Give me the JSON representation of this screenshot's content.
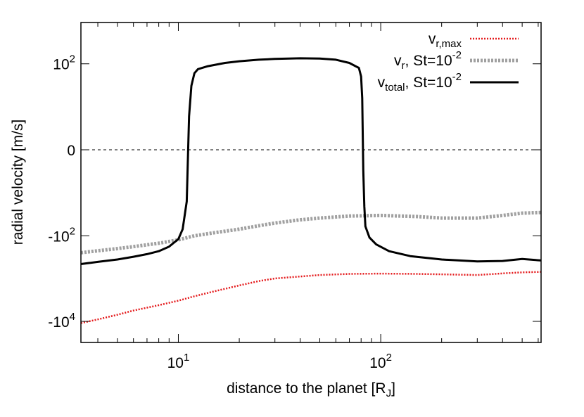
{
  "chart_data": {
    "type": "line",
    "xlabel": "distance to the planet [R",
    "xlabel_sub": "J",
    "xlabel_tail": "]",
    "ylabel": "radial velocity [m/s]",
    "x_scale": "log",
    "y_scale": "symlog",
    "xlim": [
      3.3,
      620
    ],
    "x_ticks": [
      {
        "base": "10",
        "exp": "1",
        "value": 10
      },
      {
        "base": "10",
        "exp": "2",
        "value": 100
      }
    ],
    "y_ticks": [
      {
        "base": "10",
        "exp": "2",
        "value": 100
      },
      {
        "base": "0",
        "exp": "",
        "value": 0
      },
      {
        "base": "-10",
        "exp": "2",
        "value": -100
      },
      {
        "base": "-10",
        "exp": "4",
        "value": -10000
      }
    ],
    "zero_line": true,
    "legend_position": "top-right",
    "series": [
      {
        "name": "v",
        "name_sub": "r,max",
        "name_rest": "",
        "name_exp": "",
        "name_tail": "",
        "color": "#e41a1c",
        "style": "dotted",
        "points": [
          [
            3.3,
            -11000
          ],
          [
            4,
            -9000
          ],
          [
            5,
            -7000
          ],
          [
            6,
            -5600
          ],
          [
            8,
            -4200
          ],
          [
            10,
            -3300
          ],
          [
            12,
            -2600
          ],
          [
            15,
            -2000
          ],
          [
            20,
            -1450
          ],
          [
            25,
            -1150
          ],
          [
            30,
            -1000
          ],
          [
            40,
            -900
          ],
          [
            50,
            -830
          ],
          [
            70,
            -780
          ],
          [
            100,
            -770
          ],
          [
            150,
            -780
          ],
          [
            200,
            -800
          ],
          [
            300,
            -830
          ],
          [
            400,
            -760
          ],
          [
            500,
            -720
          ],
          [
            620,
            -700
          ]
        ]
      },
      {
        "name": "v",
        "name_sub": "r",
        "name_rest": ", St=10",
        "name_exp": "-2",
        "name_tail": "",
        "color": "#a0a0a0",
        "style": "dotted-thick",
        "points": [
          [
            3.3,
            -250
          ],
          [
            4,
            -225
          ],
          [
            5,
            -200
          ],
          [
            6,
            -180
          ],
          [
            8,
            -150
          ],
          [
            10,
            -125
          ],
          [
            12,
            -100
          ],
          [
            15,
            -85
          ],
          [
            20,
            -70
          ],
          [
            25,
            -58
          ],
          [
            30,
            -50
          ],
          [
            40,
            -42
          ],
          [
            50,
            -38
          ],
          [
            70,
            -34
          ],
          [
            100,
            -33
          ],
          [
            150,
            -35
          ],
          [
            200,
            -38
          ],
          [
            300,
            -38
          ],
          [
            400,
            -33
          ],
          [
            500,
            -29
          ],
          [
            620,
            -28
          ]
        ]
      },
      {
        "name": "v",
        "name_sub": "total",
        "name_rest": ", St=10",
        "name_exp": "-2",
        "name_tail": "",
        "color": "#000000",
        "style": "solid",
        "points": [
          [
            3.3,
            -460
          ],
          [
            4,
            -410
          ],
          [
            5,
            -360
          ],
          [
            6,
            -310
          ],
          [
            7,
            -270
          ],
          [
            8,
            -230
          ],
          [
            9,
            -180
          ],
          [
            10,
            -120
          ],
          [
            10.5,
            -70
          ],
          [
            11,
            -15
          ],
          [
            11.3,
            5
          ],
          [
            11.6,
            30
          ],
          [
            12,
            60
          ],
          [
            12.5,
            75
          ],
          [
            14,
            88
          ],
          [
            17,
            105
          ],
          [
            20,
            115
          ],
          [
            25,
            125
          ],
          [
            30,
            130
          ],
          [
            40,
            135
          ],
          [
            50,
            133
          ],
          [
            60,
            125
          ],
          [
            70,
            105
          ],
          [
            78,
            80
          ],
          [
            80,
            50
          ],
          [
            81,
            15
          ],
          [
            82,
            -2
          ],
          [
            83,
            -20
          ],
          [
            84,
            -60
          ],
          [
            88,
            -110
          ],
          [
            95,
            -160
          ],
          [
            110,
            -230
          ],
          [
            140,
            -300
          ],
          [
            200,
            -360
          ],
          [
            300,
            -400
          ],
          [
            400,
            -390
          ],
          [
            500,
            -350
          ],
          [
            620,
            -380
          ]
        ]
      }
    ]
  }
}
